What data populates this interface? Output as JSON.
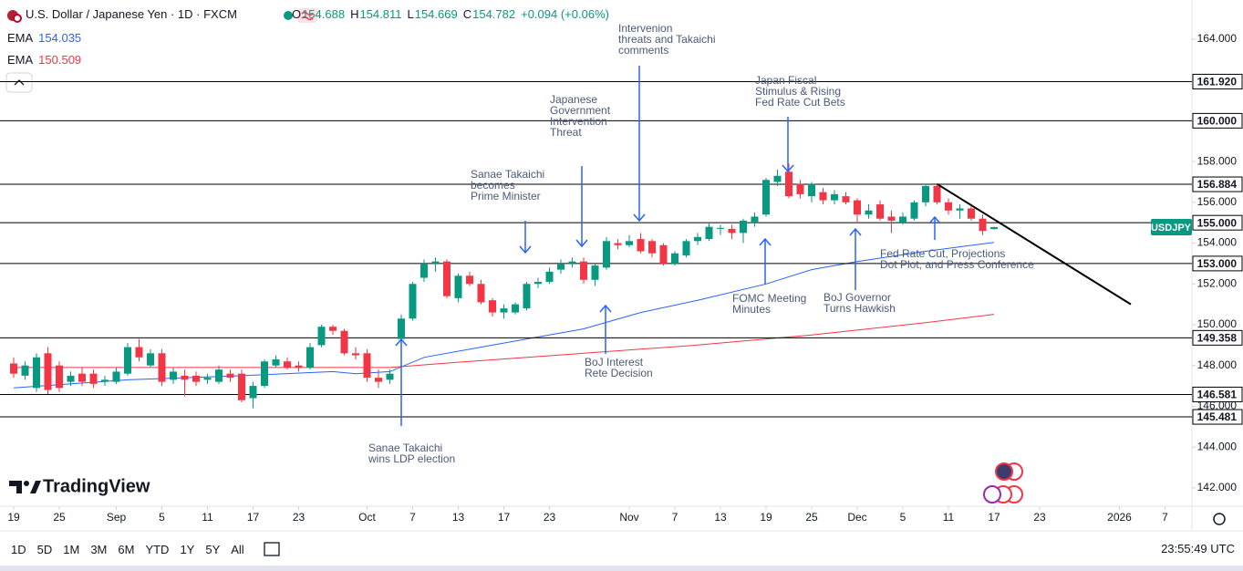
{
  "header": {
    "title": "U.S. Dollar / Japanese Yen · 1D · FXCM",
    "ohlc": [
      {
        "label": "O",
        "value": "154.688"
      },
      {
        "label": "H",
        "value": "154.811"
      },
      {
        "label": "L",
        "value": "154.669"
      },
      {
        "label": "C",
        "value": "154.782"
      }
    ],
    "change": "+0.094 (+0.06%)"
  },
  "toolbar": {
    "ranges": [
      "1D",
      "5D",
      "1M",
      "3M",
      "6M",
      "YTD",
      "1Y",
      "5Y",
      "All"
    ],
    "clock": "23:55:49 UTC",
    "logo": "TradingView"
  },
  "chart_data": {
    "type": "candlestick",
    "symbol": "USDJPY",
    "up_color": "#089981",
    "down_color": "#f23645",
    "xlim": [
      -1.2,
      103.36
    ],
    "ylim": [
      141.1,
      165.92
    ],
    "xticks": [
      {
        "value": 0,
        "label": "19"
      },
      {
        "value": 4,
        "label": "25"
      },
      {
        "value": 9,
        "label": "Sep"
      },
      {
        "value": 13,
        "label": "5"
      },
      {
        "value": 17,
        "label": "11"
      },
      {
        "value": 21,
        "label": "17"
      },
      {
        "value": 25,
        "label": "23"
      },
      {
        "value": 31,
        "label": "Oct"
      },
      {
        "value": 35,
        "label": "7"
      },
      {
        "value": 39,
        "label": "13"
      },
      {
        "value": 43,
        "label": "17"
      },
      {
        "value": 47,
        "label": "23"
      },
      {
        "value": 54,
        "label": "Nov"
      },
      {
        "value": 58,
        "label": "7"
      },
      {
        "value": 62,
        "label": "13"
      },
      {
        "value": 66,
        "label": "19"
      },
      {
        "value": 70,
        "label": "25"
      },
      {
        "value": 74,
        "label": "Dec"
      },
      {
        "value": 78,
        "label": "5"
      },
      {
        "value": 82,
        "label": "11"
      },
      {
        "value": 86,
        "label": "17"
      },
      {
        "value": 90,
        "label": "23"
      },
      {
        "value": 97,
        "label": "2026"
      },
      {
        "value": 101,
        "label": "7"
      }
    ],
    "yticks": [
      {
        "value": 164,
        "label": "164.000"
      },
      {
        "value": 158,
        "label": "158.000"
      },
      {
        "value": 156,
        "label": "156.000"
      },
      {
        "value": 154,
        "label": "154.000"
      },
      {
        "value": 152,
        "label": "152.000"
      },
      {
        "value": 150,
        "label": "150.000"
      },
      {
        "value": 148,
        "label": "148.000"
      },
      {
        "value": 146,
        "label": "146.000"
      },
      {
        "value": 144,
        "label": "144.000"
      },
      {
        "value": 142,
        "label": "142.000"
      }
    ],
    "levels": [
      {
        "value": 161.92,
        "label": "161.920"
      },
      {
        "value": 160,
        "label": "160.000"
      },
      {
        "value": 156.884,
        "label": "156.884"
      },
      {
        "value": 155,
        "label": "155.000"
      },
      {
        "value": 153,
        "label": "153.000"
      },
      {
        "value": 149.358,
        "label": "149.358"
      },
      {
        "value": 146.581,
        "label": "146.581"
      },
      {
        "value": 145.481,
        "label": "145.481"
      }
    ],
    "candles": [
      [
        148.1,
        148.4,
        147.4,
        147.6
      ],
      [
        147.5,
        148.2,
        147.3,
        148.0
      ],
      [
        146.9,
        148.6,
        146.7,
        148.4
      ],
      [
        148.6,
        148.9,
        146.6,
        146.8
      ],
      [
        148.0,
        148.2,
        146.7,
        146.9
      ],
      [
        147.2,
        147.7,
        147.0,
        147.5
      ],
      [
        147.6,
        147.9,
        147.0,
        147.2
      ],
      [
        147.6,
        147.8,
        146.9,
        147.1
      ],
      [
        147.2,
        147.5,
        147.0,
        147.3
      ],
      [
        147.2,
        147.9,
        147.1,
        147.7
      ],
      [
        147.6,
        149.1,
        147.5,
        148.9
      ],
      [
        148.9,
        149.3,
        148.2,
        148.4
      ],
      [
        148.0,
        148.8,
        147.9,
        148.6
      ],
      [
        148.6,
        148.8,
        147.0,
        147.2
      ],
      [
        147.3,
        147.9,
        147.1,
        147.7
      ],
      [
        147.5,
        147.8,
        146.5,
        147.3
      ],
      [
        147.5,
        147.7,
        147.0,
        147.2
      ],
      [
        147.3,
        147.6,
        147.1,
        147.4
      ],
      [
        147.2,
        148.0,
        147.1,
        147.8
      ],
      [
        147.6,
        147.8,
        147.2,
        147.4
      ],
      [
        147.6,
        147.8,
        146.2,
        146.3
      ],
      [
        146.4,
        147.2,
        145.9,
        147.0
      ],
      [
        147.0,
        148.3,
        146.9,
        148.2
      ],
      [
        148.0,
        148.5,
        147.9,
        148.3
      ],
      [
        148.2,
        148.4,
        147.8,
        147.9
      ],
      [
        148.0,
        148.2,
        147.7,
        147.9
      ],
      [
        147.9,
        149.1,
        147.8,
        148.9
      ],
      [
        149.0,
        150.0,
        148.9,
        149.9
      ],
      [
        149.9,
        150.0,
        149.5,
        149.7
      ],
      [
        149.7,
        149.8,
        148.5,
        148.6
      ],
      [
        148.6,
        148.9,
        148.3,
        148.5
      ],
      [
        148.6,
        148.8,
        147.2,
        147.4
      ],
      [
        147.4,
        147.8,
        146.9,
        147.2
      ],
      [
        147.3,
        147.8,
        147.1,
        147.6
      ],
      [
        149.3,
        150.5,
        148.6,
        150.3
      ],
      [
        150.3,
        152.1,
        150.2,
        152.0
      ],
      [
        152.3,
        153.2,
        152.1,
        153.0
      ],
      [
        153.0,
        153.3,
        152.6,
        153.1
      ],
      [
        153.1,
        153.2,
        151.3,
        151.4
      ],
      [
        151.3,
        152.5,
        151.1,
        152.4
      ],
      [
        152.4,
        152.6,
        151.9,
        152.0
      ],
      [
        152.0,
        152.2,
        151.0,
        151.1
      ],
      [
        151.2,
        151.3,
        150.4,
        150.6
      ],
      [
        150.6,
        151.0,
        150.3,
        150.8
      ],
      [
        150.6,
        151.1,
        150.5,
        151.0
      ],
      [
        150.8,
        152.1,
        150.7,
        152.0
      ],
      [
        152.0,
        152.3,
        151.8,
        152.1
      ],
      [
        152.1,
        152.8,
        152.0,
        152.6
      ],
      [
        152.7,
        153.2,
        152.5,
        153.0
      ],
      [
        153.0,
        153.3,
        152.8,
        153.1
      ],
      [
        153.1,
        153.3,
        152.0,
        152.2
      ],
      [
        152.2,
        153.0,
        151.9,
        152.9
      ],
      [
        152.8,
        154.3,
        152.7,
        154.1
      ],
      [
        154.0,
        154.2,
        153.7,
        153.9
      ],
      [
        153.9,
        154.4,
        153.8,
        154.1
      ],
      [
        154.2,
        154.5,
        153.5,
        153.6
      ],
      [
        154.1,
        154.2,
        153.3,
        153.5
      ],
      [
        153.9,
        154.0,
        152.9,
        153.0
      ],
      [
        153.0,
        153.6,
        152.9,
        153.5
      ],
      [
        153.4,
        154.2,
        153.3,
        154.1
      ],
      [
        154.1,
        154.5,
        153.9,
        154.3
      ],
      [
        154.2,
        155.0,
        154.1,
        154.8
      ],
      [
        154.7,
        154.9,
        154.4,
        154.75
      ],
      [
        154.7,
        154.9,
        154.2,
        154.5
      ],
      [
        154.5,
        155.2,
        154.0,
        155.1
      ],
      [
        155.0,
        155.5,
        154.8,
        155.3
      ],
      [
        155.4,
        157.2,
        155.3,
        157.1
      ],
      [
        157.0,
        157.6,
        156.8,
        157.3
      ],
      [
        157.5,
        157.9,
        156.2,
        156.3
      ],
      [
        156.9,
        157.1,
        156.2,
        156.4
      ],
      [
        156.3,
        157.0,
        156.0,
        156.9
      ],
      [
        156.5,
        156.7,
        155.9,
        156.1
      ],
      [
        156.1,
        156.6,
        155.9,
        156.4
      ],
      [
        156.3,
        156.5,
        155.9,
        156.0
      ],
      [
        156.1,
        156.2,
        155.0,
        155.4
      ],
      [
        155.4,
        155.9,
        155.2,
        155.6
      ],
      [
        155.9,
        156.1,
        155.1,
        155.2
      ],
      [
        155.3,
        155.6,
        154.5,
        155.1
      ],
      [
        155.0,
        155.5,
        154.9,
        155.3
      ],
      [
        155.2,
        156.1,
        155.1,
        156.0
      ],
      [
        156.0,
        156.9,
        155.8,
        156.8
      ],
      [
        156.8,
        156.9,
        155.9,
        156.0
      ],
      [
        156.0,
        156.2,
        155.4,
        155.6
      ],
      [
        155.6,
        155.9,
        155.2,
        155.7
      ],
      [
        155.7,
        155.9,
        155.1,
        155.2
      ],
      [
        155.2,
        155.4,
        154.4,
        154.6
      ],
      [
        154.688,
        154.811,
        154.669,
        154.782
      ]
    ],
    "series": [
      {
        "name": "EMA",
        "legend_value": "154.035",
        "color": "#2962ff",
        "x": [
          0,
          10,
          20,
          28,
          30,
          33,
          36,
          45,
          50,
          55,
          60,
          66,
          70,
          74,
          80,
          86
        ],
        "values": [
          146.9,
          147.3,
          147.5,
          147.7,
          147.6,
          147.7,
          148.4,
          149.3,
          149.8,
          150.6,
          151.2,
          152.0,
          152.7,
          153.1,
          153.6,
          154.035
        ]
      },
      {
        "name": "EMA",
        "legend_value": "150.509",
        "color": "#f23645",
        "x": [
          0,
          20,
          33,
          40,
          50,
          60,
          70,
          80,
          86
        ],
        "values": [
          147.9,
          147.9,
          147.9,
          148.2,
          148.6,
          149.0,
          149.5,
          150.1,
          150.509
        ]
      }
    ],
    "trendline": {
      "x": [
        81,
        98
      ],
      "values": [
        156.9,
        151.0
      ]
    },
    "annotations": [
      {
        "lines": [
          "Sanae Takaichi",
          "wins LDP election"
        ]
      },
      {
        "lines": [
          "BoJ Interest",
          "Rete Decision"
        ]
      },
      {
        "lines": [
          "Japanese",
          "Government",
          "Intervention",
          "Threat"
        ]
      },
      {
        "lines": [
          "Sanae Takaichi",
          "becomes",
          "Prime Minister"
        ]
      },
      {
        "lines": [
          "Intervenion",
          "threats and Takaichi",
          "comments"
        ]
      },
      {
        "lines": [
          "Japan Fiscal",
          "Stimulus & Rising",
          "Fed Rate Cut Bets"
        ]
      },
      {
        "lines": [
          "FOMC Meeting",
          "Minutes"
        ]
      },
      {
        "lines": [
          "BoJ Governor",
          "Turns Hawkish"
        ]
      },
      {
        "lines": [
          "Fed Rate Cut, Projections",
          "Dot Plot, and Press Conference"
        ]
      }
    ]
  }
}
